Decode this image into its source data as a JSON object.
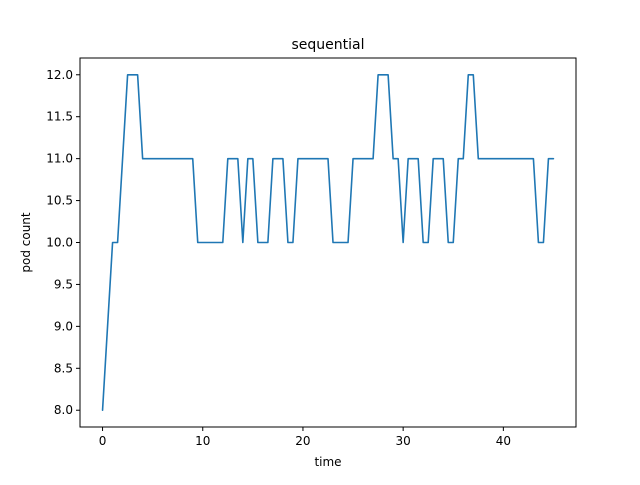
{
  "chart_data": {
    "type": "line",
    "title": "sequential",
    "xlabel": "time",
    "ylabel": "pod count",
    "xlim": [
      -2.25,
      47.25
    ],
    "ylim": [
      7.8,
      12.2
    ],
    "xticks": [
      0,
      10,
      20,
      30,
      40
    ],
    "yticks": [
      "8.0",
      "8.5",
      "9.0",
      "9.5",
      "10.0",
      "10.5",
      "11.0",
      "11.5",
      "12.0"
    ],
    "grid": false,
    "legend": "none",
    "series": [
      {
        "color": "#1f77b4",
        "x": [
          0,
          1,
          1.5,
          2.5,
          3.5,
          4,
          9,
          9.5,
          12,
          12.5,
          13.5,
          14,
          14.5,
          15,
          15.5,
          16.5,
          17,
          18,
          18.5,
          19,
          19.5,
          22.5,
          23,
          24.5,
          25,
          27,
          27.5,
          28.5,
          29,
          29.5,
          30,
          30.5,
          31.5,
          32,
          32.5,
          33,
          34,
          34.5,
          35,
          35.5,
          36,
          36.5,
          37,
          37.5,
          43,
          43.5,
          44,
          44.5,
          45
        ],
        "y": [
          8,
          10,
          10,
          12,
          12,
          11,
          11,
          10,
          10,
          11,
          11,
          10,
          11,
          11,
          10,
          10,
          11,
          11,
          10,
          10,
          11,
          11,
          10,
          10,
          11,
          11,
          12,
          12,
          11,
          11,
          10,
          11,
          11,
          10,
          10,
          11,
          11,
          10,
          10,
          11,
          11,
          12,
          12,
          11,
          11,
          10,
          10,
          11,
          11
        ]
      }
    ]
  }
}
